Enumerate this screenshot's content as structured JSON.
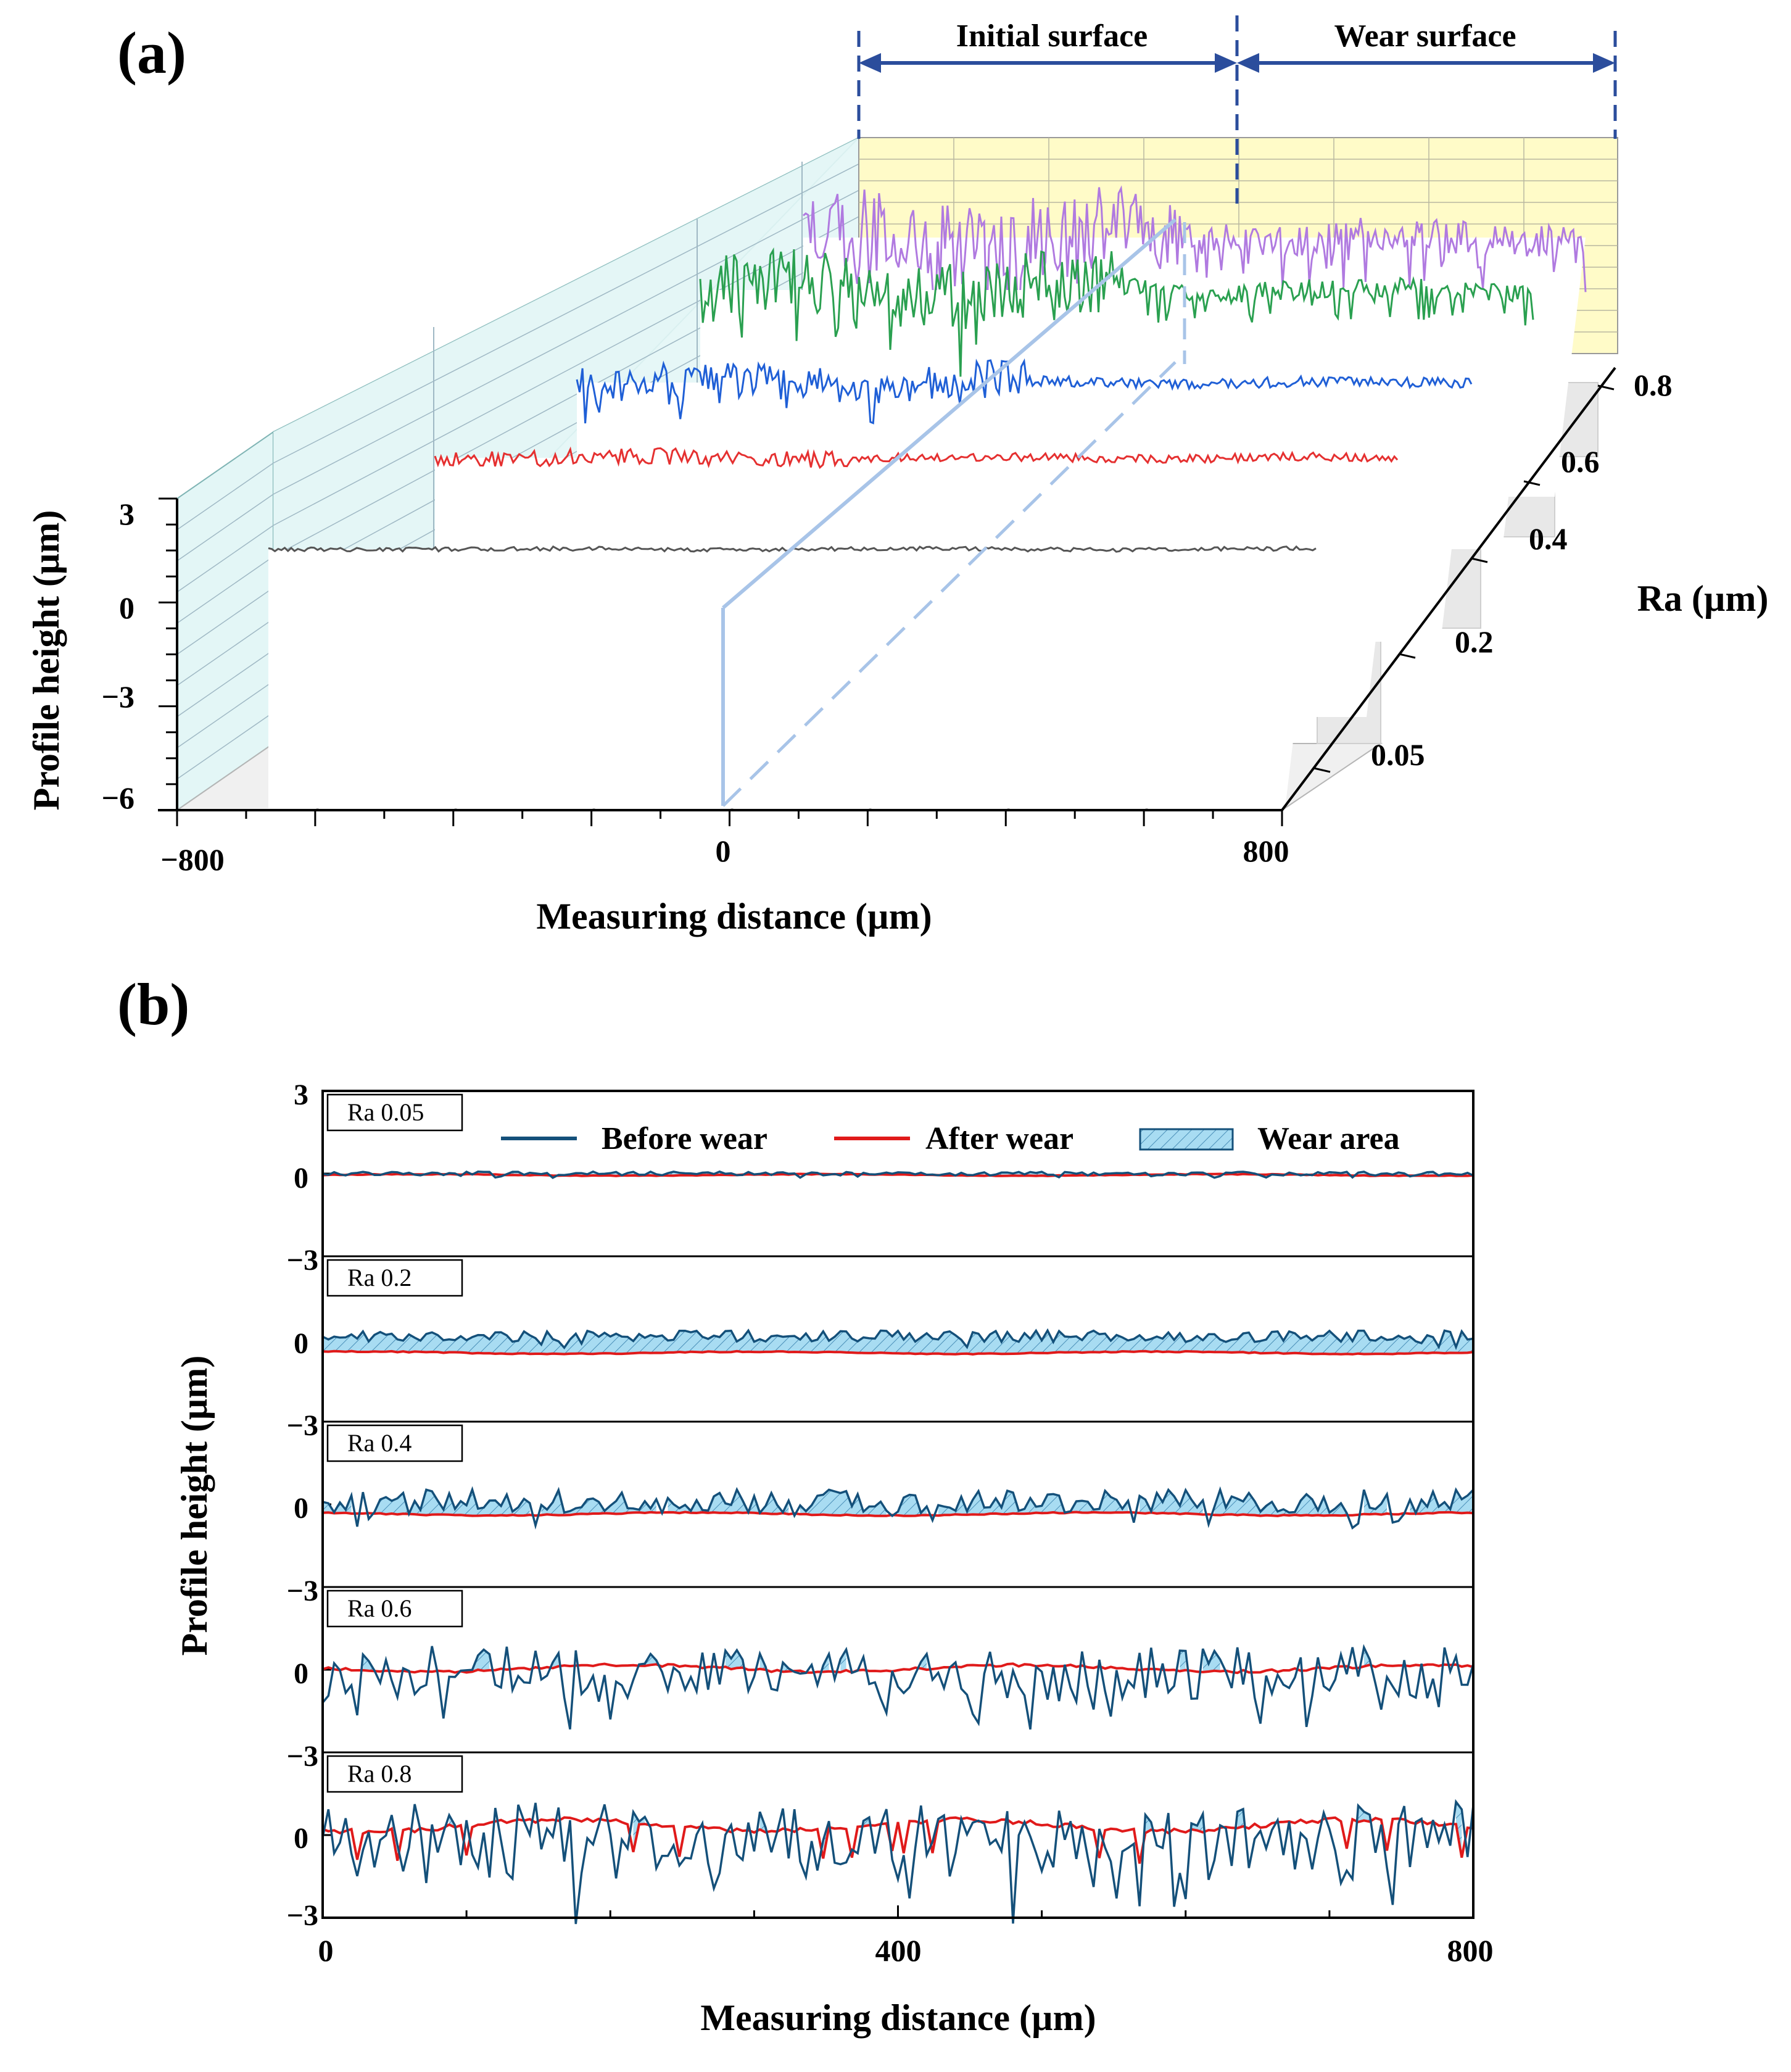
{
  "chart_data": [
    {
      "type": "line",
      "panel": "(a)",
      "projection": "3d-waterfall",
      "xlabel": "Measuring distance (µm)",
      "ylabel": "Profile height (µm)",
      "zlabel": "Ra (µm)",
      "xlim": [
        -800,
        800
      ],
      "ylim": [
        -6,
        3
      ],
      "x_ticks": [
        "−800",
        "0",
        "800"
      ],
      "y_ticks": [
        "3",
        "0",
        "−3",
        "−6"
      ],
      "z_ticks": [
        "0.05",
        "0.2",
        "0.4",
        "0.6",
        "0.8"
      ],
      "regions": [
        "Initial surface",
        "Wear surface"
      ],
      "series": [
        {
          "name": "Ra 0.05",
          "color": "#555555",
          "initial_amplitude": 0.1,
          "wear_amplitude": 0.1
        },
        {
          "name": "Ra 0.2",
          "color": "#e53030",
          "initial_amplitude": 0.4,
          "wear_amplitude": 0.2
        },
        {
          "name": "Ra 0.4",
          "color": "#1f5fd6",
          "initial_amplitude": 0.9,
          "wear_amplitude": 0.25
        },
        {
          "name": "Ra 0.6",
          "color": "#2aa050",
          "initial_amplitude": 1.6,
          "wear_amplitude": 0.5
        },
        {
          "name": "Ra 0.8",
          "color": "#b07ae0",
          "initial_amplitude": 2.0,
          "wear_amplitude": 0.8
        }
      ]
    },
    {
      "type": "line",
      "panel": "(b)",
      "xlabel": "Measuring distance (µm)",
      "ylabel": "Profile height (µm)",
      "xlim": [
        0,
        800
      ],
      "ylim": [
        -3,
        3
      ],
      "x_ticks": [
        "0",
        "400",
        "800"
      ],
      "legend": {
        "before": "Before wear",
        "after": "After wear",
        "area": "Wear area"
      },
      "subplots": [
        {
          "label": "Ra 0.05",
          "y_ticks": [
            "3",
            "0",
            "−3"
          ],
          "before_offset": 0.0,
          "before_amp": 0.12,
          "after_offset": -0.05,
          "after_amp": 0.08
        },
        {
          "label": "Ra 0.2",
          "y_ticks": [
            "0",
            "−3"
          ],
          "before_offset": 0.1,
          "before_amp": 0.35,
          "after_offset": -0.5,
          "after_amp": 0.12
        },
        {
          "label": "Ra 0.4",
          "y_ticks": [
            "0",
            "−3"
          ],
          "before_offset": 0.1,
          "before_amp": 0.75,
          "after_offset": -0.35,
          "after_amp": 0.15
        },
        {
          "label": "Ra 0.6",
          "y_ticks": [
            "0",
            "−3"
          ],
          "before_offset": -0.1,
          "before_amp": 1.6,
          "after_offset": 0.05,
          "after_amp": 0.35
        },
        {
          "label": "Ra 0.8",
          "y_ticks": [
            "0",
            "−3"
          ],
          "before_offset": -0.2,
          "before_amp": 2.4,
          "after_offset": 0.35,
          "after_amp": 0.6
        }
      ]
    }
  ],
  "labels": {
    "panel_a": "(a)",
    "panel_b": "(b)"
  },
  "colors": {
    "before": "#14507a",
    "after": "#e01a1a",
    "fill": "#a8dcf2",
    "bracket": "#2b4d9c",
    "sidewall": "#e3f6f6",
    "backwall": "#fffbc8",
    "cut_plane": "#a8c4e8"
  }
}
